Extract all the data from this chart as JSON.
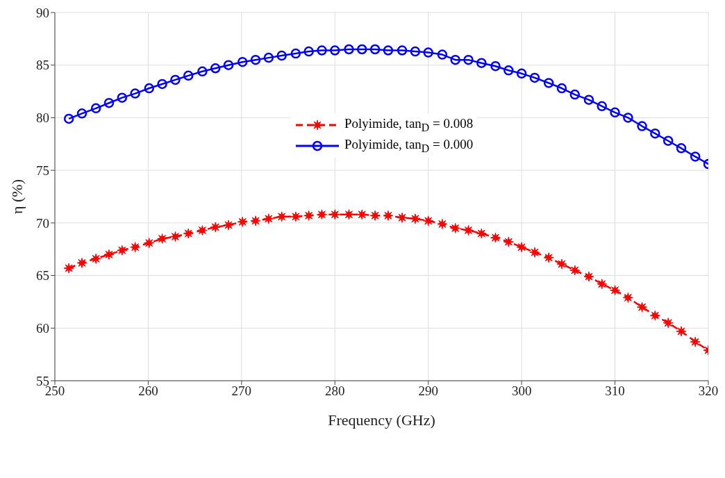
{
  "chart_data": {
    "type": "line",
    "xlabel": "Frequency (GHz)",
    "ylabel": "η (%)",
    "x": [
      251.5,
      252.9,
      254.4,
      255.8,
      257.2,
      258.6,
      260.1,
      261.5,
      262.9,
      264.3,
      265.8,
      267.2,
      268.6,
      270.1,
      271.5,
      272.9,
      274.3,
      275.8,
      277.2,
      278.6,
      280.0,
      281.5,
      282.9,
      284.3,
      285.7,
      287.2,
      288.6,
      290.0,
      291.5,
      292.9,
      294.3,
      295.7,
      297.2,
      298.6,
      300.0,
      301.4,
      302.9,
      304.3,
      305.7,
      307.2,
      308.6,
      310.0,
      311.4,
      312.9,
      314.3,
      315.7,
      317.1,
      318.6,
      320.0
    ],
    "series": [
      {
        "name": "Polyimide, tan$_{D}$ = 0.008",
        "color": "#ff0000",
        "marker": "star",
        "line_style": "dashed",
        "values": [
          65.7,
          66.2,
          66.6,
          67.0,
          67.4,
          67.7,
          68.1,
          68.5,
          68.7,
          69.0,
          69.3,
          69.6,
          69.8,
          70.1,
          70.2,
          70.4,
          70.6,
          70.6,
          70.7,
          70.8,
          70.8,
          70.8,
          70.8,
          70.7,
          70.7,
          70.5,
          70.4,
          70.2,
          69.9,
          69.5,
          69.3,
          69.0,
          68.6,
          68.2,
          67.7,
          67.2,
          66.7,
          66.1,
          65.5,
          64.9,
          64.2,
          63.6,
          62.9,
          62.0,
          61.2,
          60.5,
          59.7,
          58.7,
          57.9
        ]
      },
      {
        "name": "Polyimide, tan$_{D}$ = 0.000",
        "color": "#0000ff",
        "marker": "circle",
        "line_style": "solid",
        "values": [
          79.9,
          80.4,
          80.9,
          81.4,
          81.9,
          82.3,
          82.8,
          83.2,
          83.6,
          84.0,
          84.4,
          84.7,
          85.0,
          85.3,
          85.5,
          85.7,
          85.9,
          86.1,
          86.3,
          86.4,
          86.4,
          86.5,
          86.5,
          86.5,
          86.4,
          86.4,
          86.3,
          86.2,
          86.0,
          85.5,
          85.5,
          85.2,
          84.9,
          84.5,
          84.2,
          83.8,
          83.3,
          82.8,
          82.2,
          81.7,
          81.1,
          80.5,
          80.0,
          79.2,
          78.5,
          77.8,
          77.1,
          76.3,
          75.6
        ]
      }
    ],
    "xlim": [
      250,
      320
    ],
    "xticks": [
      250,
      260,
      270,
      280,
      290,
      300,
      310,
      320
    ],
    "ylim": [
      55,
      90
    ],
    "yticks": [
      55,
      60,
      65,
      70,
      75,
      80,
      85,
      90
    ],
    "grid": true,
    "legend": "top"
  }
}
